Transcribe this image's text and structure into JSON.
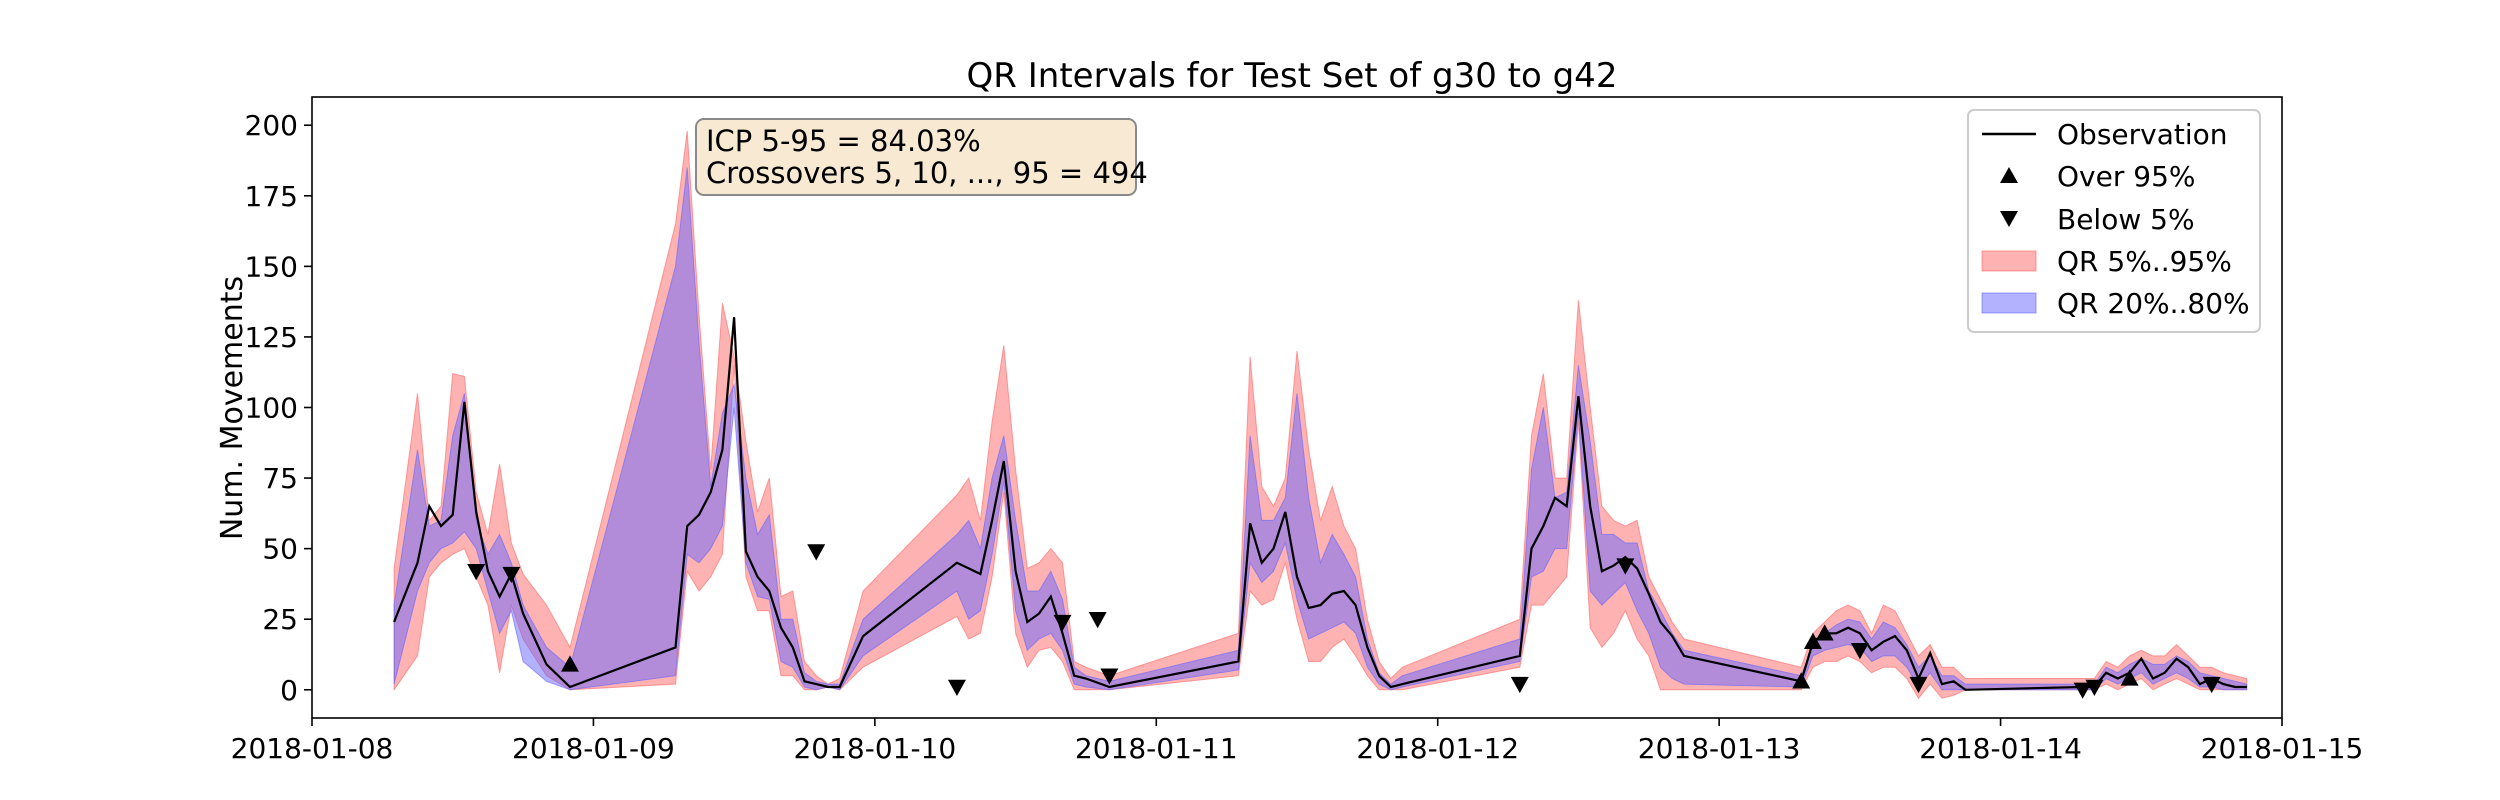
{
  "chart_data": {
    "type": "line",
    "title": "QR Intervals for Test Set of g30 to g42",
    "xlabel": "",
    "ylabel": "Num. Movements",
    "xlim": [
      "2018-01-08T00:00",
      "2018-01-15T00:00"
    ],
    "ylim": [
      -10,
      210
    ],
    "x_ticks": [
      "2018-01-08",
      "2018-01-09",
      "2018-01-10",
      "2018-01-11",
      "2018-01-12",
      "2018-01-13",
      "2018-01-14",
      "2018-01-15"
    ],
    "y_ticks": [
      0,
      25,
      50,
      75,
      100,
      125,
      150,
      175,
      200
    ],
    "legend_position": "top-right",
    "colors": {
      "observation": "#000000",
      "qr_5_95": "#ff6666",
      "qr_20_80": "#6666ff",
      "annotation_face": "#f7e9d2",
      "annotation_edge": "#8a8a8a"
    },
    "annotation": {
      "line1": "ICP 5-95 = 84.03%",
      "line2": "Crossovers 5, 10, ..., 95 = 494"
    },
    "legend": [
      {
        "label": "Observation",
        "marker": "line"
      },
      {
        "label": "Over 95%",
        "marker": "triangle-up"
      },
      {
        "label": "Below 5%",
        "marker": "triangle-down"
      },
      {
        "label": "QR 5%..95%",
        "marker": "patch-red"
      },
      {
        "label": "QR 20%..80%",
        "marker": "patch-blue"
      }
    ],
    "series": [
      {
        "name": "Observation",
        "x": [
          "2018-01-08T07:00",
          "2018-01-08T09:00",
          "2018-01-08T10:00",
          "2018-01-08T11:00",
          "2018-01-08T12:00",
          "2018-01-08T13:00",
          "2018-01-08T14:00",
          "2018-01-08T15:00",
          "2018-01-08T16:00",
          "2018-01-08T17:00",
          "2018-01-08T18:00",
          "2018-01-08T20:00",
          "2018-01-08T22:00",
          "2018-01-09T07:00",
          "2018-01-09T08:00",
          "2018-01-09T09:00",
          "2018-01-09T10:00",
          "2018-01-09T11:00",
          "2018-01-09T12:00",
          "2018-01-09T13:00",
          "2018-01-09T14:00",
          "2018-01-09T15:00",
          "2018-01-09T16:00",
          "2018-01-09T17:00",
          "2018-01-09T18:00",
          "2018-01-09T19:00",
          "2018-01-09T20:00",
          "2018-01-09T21:00",
          "2018-01-09T23:00",
          "2018-01-10T07:00",
          "2018-01-10T08:00",
          "2018-01-10T09:00",
          "2018-01-10T10:00",
          "2018-01-10T11:00",
          "2018-01-10T12:00",
          "2018-01-10T13:00",
          "2018-01-10T14:00",
          "2018-01-10T15:00",
          "2018-01-10T16:00",
          "2018-01-10T17:00",
          "2018-01-10T18:00",
          "2018-01-10T20:00",
          "2018-01-11T07:00",
          "2018-01-11T08:00",
          "2018-01-11T09:00",
          "2018-01-11T10:00",
          "2018-01-11T11:00",
          "2018-01-11T12:00",
          "2018-01-11T13:00",
          "2018-01-11T14:00",
          "2018-01-11T15:00",
          "2018-01-11T16:00",
          "2018-01-11T17:00",
          "2018-01-11T18:00",
          "2018-01-11T19:00",
          "2018-01-11T20:00",
          "2018-01-11T21:00",
          "2018-01-12T07:00",
          "2018-01-12T08:00",
          "2018-01-12T09:00",
          "2018-01-12T10:00",
          "2018-01-12T11:00",
          "2018-01-12T12:00",
          "2018-01-12T13:00",
          "2018-01-12T14:00",
          "2018-01-12T15:00",
          "2018-01-12T16:00",
          "2018-01-12T17:00",
          "2018-01-12T18:00",
          "2018-01-12T19:00",
          "2018-01-12T20:00",
          "2018-01-12T21:00",
          "2018-01-13T07:00",
          "2018-01-13T08:00",
          "2018-01-13T09:00",
          "2018-01-13T10:00",
          "2018-01-13T11:00",
          "2018-01-13T12:00",
          "2018-01-13T13:00",
          "2018-01-13T14:00",
          "2018-01-13T15:00",
          "2018-01-13T16:00",
          "2018-01-13T17:00",
          "2018-01-13T18:00",
          "2018-01-13T19:00",
          "2018-01-13T20:00",
          "2018-01-13T21:00",
          "2018-01-14T07:00",
          "2018-01-14T08:00",
          "2018-01-14T09:00",
          "2018-01-14T10:00",
          "2018-01-14T11:00",
          "2018-01-14T12:00",
          "2018-01-14T13:00",
          "2018-01-14T14:00",
          "2018-01-14T15:00",
          "2018-01-14T16:00",
          "2018-01-14T17:00",
          "2018-01-14T18:00",
          "2018-01-14T19:00",
          "2018-01-14T20:00",
          "2018-01-14T21:00"
        ],
        "y": [
          24,
          45,
          65,
          58,
          62,
          102,
          63,
          42,
          33,
          41,
          27,
          9,
          1,
          15,
          58,
          62,
          70,
          85,
          132,
          49,
          40,
          35,
          22,
          15,
          3,
          2,
          1,
          1,
          19,
          45,
          43,
          41,
          60,
          81,
          42,
          24,
          27,
          33,
          20,
          5,
          4,
          1,
          10,
          59,
          45,
          50,
          63,
          40,
          29,
          30,
          34,
          35,
          30,
          15,
          5,
          1,
          2,
          12,
          50,
          58,
          68,
          65,
          104,
          65,
          42,
          44,
          47,
          43,
          34,
          24,
          19,
          12,
          3,
          17,
          20,
          20,
          22,
          20,
          14,
          17,
          19,
          14,
          4,
          13,
          2,
          3,
          0,
          1,
          1,
          6,
          4,
          6,
          11,
          4,
          6,
          11,
          8,
          2,
          4,
          2,
          1,
          1
        ]
      },
      {
        "name": "QR 5%..95%",
        "lower": [
          0,
          12,
          40,
          45,
          48,
          50,
          40,
          30,
          6,
          30,
          18,
          5,
          0,
          2,
          42,
          35,
          40,
          48,
          115,
          40,
          28,
          28,
          5,
          5,
          0,
          0,
          1,
          0,
          8,
          26,
          18,
          20,
          40,
          70,
          20,
          8,
          14,
          15,
          10,
          0,
          0,
          0,
          5,
          35,
          30,
          32,
          45,
          25,
          10,
          10,
          15,
          18,
          12,
          5,
          0,
          0,
          0,
          8,
          30,
          30,
          35,
          40,
          95,
          22,
          15,
          20,
          28,
          18,
          12,
          0,
          0,
          0,
          0,
          8,
          10,
          10,
          12,
          10,
          6,
          8,
          8,
          4,
          -3,
          2,
          -3,
          -2,
          0,
          0,
          0,
          2,
          0,
          2,
          4,
          0,
          2,
          4,
          2,
          0,
          0,
          0,
          0,
          0
        ],
        "upper": [
          43,
          105,
          60,
          65,
          112,
          111,
          70,
          55,
          80,
          52,
          41,
          30,
          15,
          165,
          198,
          133,
          78,
          137,
          118,
          88,
          63,
          75,
          33,
          35,
          10,
          5,
          2,
          4,
          35,
          69,
          75,
          60,
          95,
          122,
          78,
          43,
          45,
          50,
          45,
          10,
          8,
          5,
          20,
          118,
          72,
          65,
          75,
          120,
          85,
          60,
          72,
          58,
          50,
          25,
          10,
          4,
          8,
          25,
          90,
          112,
          75,
          75,
          138,
          100,
          65,
          60,
          58,
          60,
          40,
          32,
          24,
          18,
          8,
          20,
          24,
          28,
          30,
          28,
          20,
          30,
          28,
          20,
          12,
          16,
          8,
          8,
          4,
          4,
          4,
          10,
          8,
          12,
          14,
          12,
          12,
          16,
          12,
          8,
          8,
          6,
          5,
          4
        ]
      },
      {
        "name": "QR 20%..80%",
        "lower": [
          2,
          35,
          45,
          50,
          52,
          56,
          50,
          35,
          20,
          28,
          10,
          3,
          0,
          5,
          48,
          45,
          50,
          58,
          100,
          45,
          33,
          32,
          10,
          8,
          1,
          0,
          1,
          0,
          12,
          35,
          25,
          28,
          48,
          74,
          28,
          14,
          18,
          20,
          14,
          2,
          1,
          0,
          7,
          45,
          38,
          42,
          52,
          32,
          18,
          20,
          22,
          24,
          20,
          8,
          2,
          0,
          1,
          10,
          40,
          42,
          50,
          50,
          98,
          35,
          30,
          34,
          38,
          28,
          20,
          8,
          4,
          2,
          1,
          12,
          14,
          15,
          16,
          15,
          10,
          12,
          12,
          8,
          1,
          6,
          0,
          0,
          0,
          0,
          0,
          4,
          2,
          4,
          6,
          2,
          4,
          6,
          4,
          1,
          1,
          0,
          0,
          0
        ],
        "upper": [
          30,
          85,
          58,
          60,
          90,
          105,
          60,
          48,
          55,
          45,
          30,
          15,
          8,
          150,
          185,
          123,
          72,
          98,
          108,
          75,
          55,
          62,
          25,
          25,
          6,
          3,
          2,
          2,
          25,
          55,
          60,
          50,
          75,
          90,
          60,
          35,
          35,
          42,
          32,
          8,
          5,
          3,
          14,
          90,
          60,
          60,
          68,
          105,
          68,
          45,
          55,
          48,
          40,
          18,
          6,
          2,
          5,
          18,
          78,
          100,
          68,
          70,
          115,
          88,
          55,
          55,
          52,
          52,
          35,
          28,
          20,
          14,
          5,
          16,
          20,
          23,
          25,
          24,
          18,
          24,
          22,
          16,
          8,
          12,
          5,
          5,
          2,
          2,
          2,
          8,
          6,
          9,
          11,
          9,
          9,
          12,
          10,
          6,
          5,
          4,
          3,
          2
        ]
      },
      {
        "name": "Over 95%",
        "x": [
          "2018-01-08T22:00",
          "2018-01-13T07:00",
          "2018-01-13T08:00",
          "2018-01-13T09:00",
          "2018-01-14T11:00"
        ],
        "y": [
          9,
          3,
          17,
          20,
          4
        ]
      },
      {
        "name": "Below 5%",
        "x": [
          "2018-01-08T14:00",
          "2018-01-08T17:00",
          "2018-01-09T19:00",
          "2018-01-10T07:00",
          "2018-01-10T16:00",
          "2018-01-10T19:00",
          "2018-01-10T20:00",
          "2018-01-12T07:00",
          "2018-01-12T16:00",
          "2018-01-13T12:00",
          "2018-01-13T17:00",
          "2018-01-14T07:00",
          "2018-01-14T08:00",
          "2018-01-14T18:00"
        ],
        "y": [
          42,
          41,
          49,
          1,
          24,
          25,
          5,
          2,
          44,
          14,
          2,
          0,
          1,
          2
        ]
      }
    ]
  }
}
